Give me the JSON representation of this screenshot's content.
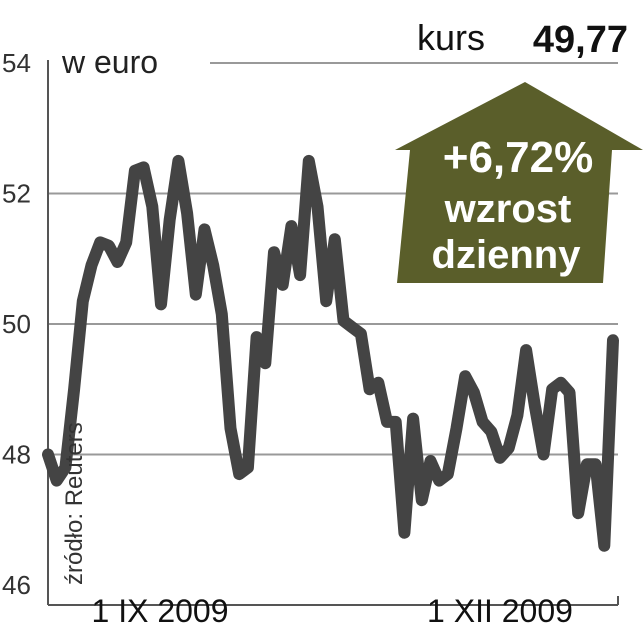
{
  "chart_data": {
    "type": "line",
    "title": "",
    "unit_label": "w euro",
    "source": "źródło: Reuters",
    "ylim": [
      46,
      54
    ],
    "y_ticks": [
      "46",
      "48",
      "50",
      "52",
      "54"
    ],
    "x_tick_labels": [
      "1 IX 2009",
      "1 XII 2009"
    ],
    "grid": true,
    "line_color": "#444444",
    "values": [
      48.0,
      47.6,
      47.8,
      49.0,
      50.35,
      50.9,
      51.25,
      51.2,
      50.95,
      51.25,
      52.35,
      52.4,
      51.8,
      50.3,
      51.6,
      52.5,
      51.7,
      50.45,
      51.45,
      50.9,
      50.15,
      48.4,
      47.7,
      47.8,
      49.8,
      49.4,
      51.1,
      50.6,
      51.5,
      50.75,
      52.5,
      51.8,
      50.35,
      51.3,
      50.05,
      49.95,
      49.85,
      49.0,
      49.1,
      48.5,
      48.5,
      46.8,
      48.55,
      47.3,
      47.9,
      47.6,
      47.7,
      48.4,
      49.2,
      48.95,
      48.5,
      48.35,
      47.95,
      48.1,
      48.6,
      49.6,
      48.75,
      48.0,
      49.0,
      49.1,
      48.95,
      47.1,
      47.85,
      47.85,
      46.6,
      49.75
    ]
  },
  "header": {
    "kurs_label": "kurs",
    "kurs_value": "49,77"
  },
  "badge": {
    "change": "+6,72%",
    "line1": "wzrost",
    "line2": "dzienny",
    "color": "#5a5e2a"
  }
}
